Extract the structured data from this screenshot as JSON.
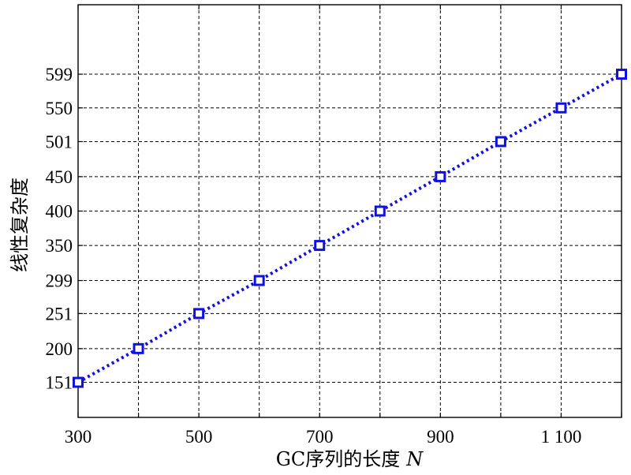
{
  "chart_data": {
    "type": "line",
    "title": "",
    "xlabel": "GC序列的长度",
    "xlabel_var": "N",
    "ylabel": "线性复杂度",
    "xlim": [
      300,
      1200
    ],
    "ylim": [
      100,
      700
    ],
    "grid": true,
    "legend": "none",
    "x_ticks": [
      300,
      400,
      500,
      600,
      700,
      800,
      900,
      1000,
      1100,
      1200
    ],
    "x_tick_labels": [
      "300",
      "",
      "500",
      "",
      "700",
      "",
      "900",
      "",
      "1 100",
      ""
    ],
    "y_ticks": [
      151,
      200,
      251,
      299,
      350,
      400,
      450,
      501,
      550,
      599
    ],
    "y_tick_labels": [
      "151",
      "200",
      "251",
      "299",
      "350",
      "400",
      "450",
      "501",
      "550",
      "599"
    ],
    "x": [
      300,
      400,
      500,
      600,
      700,
      800,
      900,
      1000,
      1100,
      1200
    ],
    "series": [
      {
        "values": [
          151,
          200,
          251,
          299,
          350,
          400,
          450,
          501,
          550,
          599
        ],
        "color": "#1010e0",
        "marker": "square",
        "line_style": "dotted"
      }
    ]
  }
}
